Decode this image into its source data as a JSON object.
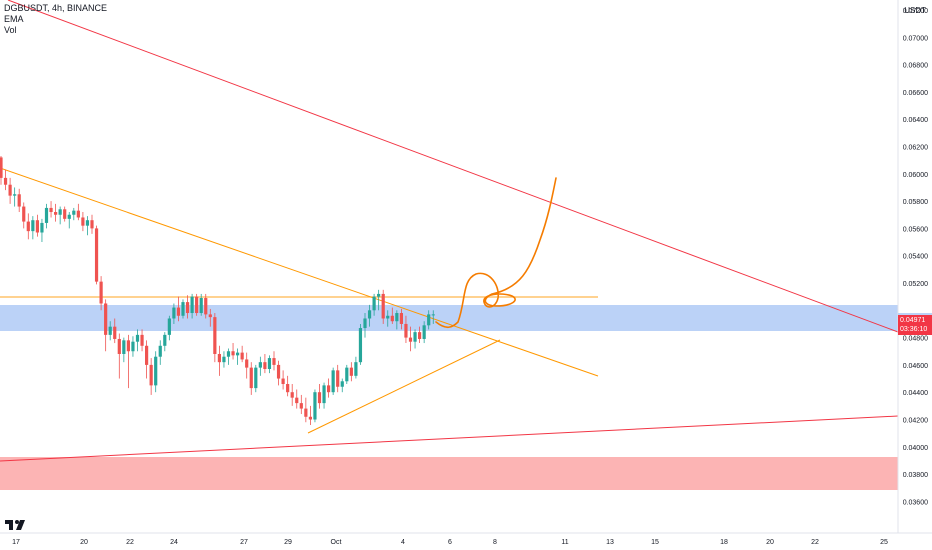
{
  "legend": {
    "symbol_line": "DGBUSDT, 4h, BINANCE",
    "ema_label": "EMA",
    "vol_label": "Vol"
  },
  "price_axis": {
    "unit": "USDT",
    "ticks": [
      "0.07200",
      "0.07000",
      "0.06800",
      "0.06600",
      "0.06400",
      "0.06200",
      "0.06000",
      "0.05800",
      "0.05600",
      "0.05400",
      "0.05200",
      "0.04800",
      "0.04600",
      "0.04400",
      "0.04200",
      "0.04000",
      "0.03800",
      "0.03600"
    ],
    "last_price": "0.04971",
    "countdown": "03:36:10"
  },
  "time_axis": {
    "ticks": [
      "17",
      "20",
      "22",
      "24",
      "27",
      "29",
      "Oct",
      "4",
      "6",
      "8",
      "11",
      "13",
      "15",
      "18",
      "20",
      "22",
      "25"
    ]
  },
  "colors": {
    "bull": "#26a69a",
    "bear": "#ef5350",
    "resistance_line": "#f23645",
    "trend_orange": "#ff9800",
    "zone_blue": "#bbd2f7",
    "zone_red": "#fcb4b4",
    "drawing": "#f57c00"
  },
  "chart_data": {
    "type": "candlestick",
    "y_axis_ticks": [
      0.072,
      0.07,
      0.068,
      0.066,
      0.064,
      0.062,
      0.06,
      0.058,
      0.056,
      0.054,
      0.052,
      0.048,
      0.046,
      0.044,
      0.042,
      0.04,
      0.038,
      0.036
    ],
    "candles": [
      [
        0.0612,
        0.0613,
        0.0592,
        0.0597
      ],
      [
        0.0597,
        0.0603,
        0.0588,
        0.0592
      ],
      [
        0.0592,
        0.0597,
        0.0578,
        0.0584
      ],
      [
        0.0584,
        0.059,
        0.0576,
        0.0585
      ],
      [
        0.0585,
        0.0589,
        0.0572,
        0.0576
      ],
      [
        0.0576,
        0.0579,
        0.056,
        0.0565
      ],
      [
        0.0565,
        0.0571,
        0.0552,
        0.0558
      ],
      [
        0.0558,
        0.0569,
        0.0552,
        0.0566
      ],
      [
        0.0566,
        0.057,
        0.0554,
        0.0557
      ],
      [
        0.0557,
        0.0567,
        0.055,
        0.0564
      ],
      [
        0.0564,
        0.0578,
        0.056,
        0.0575
      ],
      [
        0.0575,
        0.058,
        0.0568,
        0.0572
      ],
      [
        0.0572,
        0.0578,
        0.0565,
        0.057
      ],
      [
        0.057,
        0.0576,
        0.0563,
        0.0574
      ],
      [
        0.0574,
        0.0576,
        0.0565,
        0.0567
      ],
      [
        0.0567,
        0.0572,
        0.056,
        0.057
      ],
      [
        0.057,
        0.0575,
        0.0566,
        0.0573
      ],
      [
        0.0573,
        0.0578,
        0.0566,
        0.0568
      ],
      [
        0.0568,
        0.0572,
        0.0558,
        0.0562
      ],
      [
        0.0562,
        0.0569,
        0.0555,
        0.0566
      ],
      [
        0.0566,
        0.057,
        0.0556,
        0.056
      ],
      [
        0.056,
        0.0562,
        0.0519,
        0.0521
      ],
      [
        0.0521,
        0.0525,
        0.05,
        0.0505
      ],
      [
        0.0505,
        0.0508,
        0.047,
        0.0482
      ],
      [
        0.0482,
        0.0492,
        0.0478,
        0.0488
      ],
      [
        0.0488,
        0.0494,
        0.0476,
        0.0479
      ],
      [
        0.0479,
        0.0483,
        0.045,
        0.0468
      ],
      [
        0.0468,
        0.048,
        0.0462,
        0.0478
      ],
      [
        0.0478,
        0.0482,
        0.0443,
        0.047
      ],
      [
        0.047,
        0.0481,
        0.0466,
        0.0477
      ],
      [
        0.0477,
        0.0486,
        0.047,
        0.0482
      ],
      [
        0.0482,
        0.0486,
        0.047,
        0.0474
      ],
      [
        0.0474,
        0.0478,
        0.045,
        0.046
      ],
      [
        0.046,
        0.0465,
        0.0438,
        0.0445
      ],
      [
        0.0445,
        0.047,
        0.044,
        0.0466
      ],
      [
        0.0466,
        0.0478,
        0.046,
        0.0474
      ],
      [
        0.0474,
        0.0484,
        0.047,
        0.0482
      ],
      [
        0.0482,
        0.0496,
        0.0478,
        0.0494
      ],
      [
        0.0494,
        0.0505,
        0.049,
        0.0502
      ],
      [
        0.0502,
        0.051,
        0.0492,
        0.0496
      ],
      [
        0.0496,
        0.0508,
        0.0494,
        0.0506
      ],
      [
        0.0506,
        0.0511,
        0.0494,
        0.0498
      ],
      [
        0.0498,
        0.0512,
        0.0494,
        0.051
      ],
      [
        0.051,
        0.0512,
        0.0496,
        0.0498
      ],
      [
        0.0498,
        0.0512,
        0.0496,
        0.0509
      ],
      [
        0.0509,
        0.0512,
        0.0494,
        0.0497
      ],
      [
        0.0497,
        0.0501,
        0.0488,
        0.0495
      ],
      [
        0.0495,
        0.0498,
        0.0462,
        0.0468
      ],
      [
        0.0468,
        0.0474,
        0.0452,
        0.0462
      ],
      [
        0.0462,
        0.047,
        0.0458,
        0.0466
      ],
      [
        0.0466,
        0.0472,
        0.046,
        0.047
      ],
      [
        0.047,
        0.0476,
        0.0464,
        0.0467
      ],
      [
        0.0467,
        0.0472,
        0.046,
        0.0469
      ],
      [
        0.0469,
        0.0474,
        0.0462,
        0.0464
      ],
      [
        0.0464,
        0.0469,
        0.045,
        0.0458
      ],
      [
        0.0458,
        0.0462,
        0.0438,
        0.0443
      ],
      [
        0.0443,
        0.046,
        0.044,
        0.0458
      ],
      [
        0.0458,
        0.0466,
        0.0452,
        0.0462
      ],
      [
        0.0462,
        0.0468,
        0.0454,
        0.0457
      ],
      [
        0.0457,
        0.0467,
        0.0454,
        0.0465
      ],
      [
        0.0465,
        0.047,
        0.0456,
        0.046
      ],
      [
        0.046,
        0.0463,
        0.0445,
        0.045
      ],
      [
        0.045,
        0.0456,
        0.0442,
        0.0446
      ],
      [
        0.0446,
        0.0452,
        0.0437,
        0.044
      ],
      [
        0.044,
        0.0446,
        0.043,
        0.0436
      ],
      [
        0.0436,
        0.0442,
        0.0428,
        0.0432
      ],
      [
        0.0432,
        0.0438,
        0.0424,
        0.0428
      ],
      [
        0.0428,
        0.0436,
        0.0418,
        0.0422
      ],
      [
        0.0422,
        0.043,
        0.0416,
        0.042
      ],
      [
        0.042,
        0.0442,
        0.0418,
        0.044
      ],
      [
        0.044,
        0.0446,
        0.0428,
        0.0432
      ],
      [
        0.0432,
        0.0447,
        0.0428,
        0.0445
      ],
      [
        0.0445,
        0.045,
        0.0436,
        0.044
      ],
      [
        0.044,
        0.0458,
        0.0438,
        0.0456
      ],
      [
        0.0456,
        0.046,
        0.044,
        0.0444
      ],
      [
        0.0444,
        0.045,
        0.044,
        0.0448
      ],
      [
        0.0448,
        0.046,
        0.0446,
        0.0458
      ],
      [
        0.0458,
        0.0462,
        0.0448,
        0.0452
      ],
      [
        0.0452,
        0.0466,
        0.045,
        0.0462
      ],
      [
        0.0462,
        0.049,
        0.046,
        0.0487
      ],
      [
        0.0487,
        0.0498,
        0.048,
        0.0494
      ],
      [
        0.0494,
        0.0504,
        0.0488,
        0.05
      ],
      [
        0.05,
        0.0512,
        0.0496,
        0.051
      ],
      [
        0.051,
        0.0515,
        0.05,
        0.0512
      ],
      [
        0.0512,
        0.0515,
        0.049,
        0.0494
      ],
      [
        0.0494,
        0.05,
        0.0488,
        0.0496
      ],
      [
        0.0496,
        0.0502,
        0.049,
        0.0492
      ],
      [
        0.0492,
        0.05,
        0.0486,
        0.0498
      ],
      [
        0.0498,
        0.0501,
        0.0486,
        0.049
      ],
      [
        0.049,
        0.0496,
        0.0476,
        0.048
      ],
      [
        0.048,
        0.0488,
        0.047,
        0.0477
      ],
      [
        0.0477,
        0.0486,
        0.0472,
        0.0484
      ],
      [
        0.0484,
        0.0488,
        0.0476,
        0.0479
      ],
      [
        0.0479,
        0.0492,
        0.0476,
        0.0489
      ],
      [
        0.0489,
        0.05,
        0.0486,
        0.0497
      ],
      [
        0.0497,
        0.05,
        0.049,
        0.0497
      ]
    ],
    "zones": [
      {
        "name": "resistance-zone",
        "from": 0.0484,
        "to": 0.0503
      },
      {
        "name": "support-zone",
        "from": 0.0372,
        "to": 0.0396
      }
    ],
    "horizontal_level": 0.0513,
    "last_price": 0.04971
  }
}
